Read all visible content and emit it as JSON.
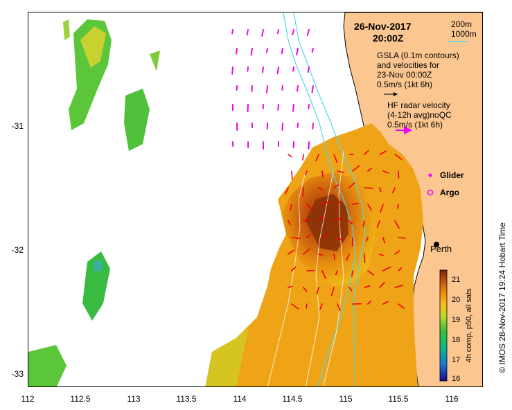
{
  "header": {
    "date": "26-Nov-2017",
    "time": "20:00Z"
  },
  "legend": {
    "depth_contours": [
      "200m",
      "1000m"
    ],
    "contour_color": "#4dd9e6",
    "gsla_lines": [
      "GSLA (0.1m contours)",
      "and velocities for",
      "23-Nov 00:00Z"
    ],
    "gsla_scale": "0.5m/s (1kt 6h)",
    "hf_lines": [
      "HF radar velocity",
      "(4-12h avg)noQC"
    ],
    "hf_scale": "0.5m/s (1kt 6h)",
    "glider": "Glider",
    "argo": "Argo"
  },
  "place": {
    "city": "Perth"
  },
  "axes": {
    "x_ticks": [
      "112",
      "112.5",
      "113",
      "113.5",
      "114",
      "114.5",
      "115",
      "115.5",
      "116"
    ],
    "y_ticks": [
      "-31",
      "-32",
      "-33"
    ]
  },
  "colorbar": {
    "title": "4h comp, p50, all sats",
    "ticks": [
      "16",
      "17",
      "18",
      "19",
      "20",
      "21"
    ],
    "range": [
      16,
      21.5
    ]
  },
  "credit": "© IMOS 28-Nov-2017 19:24 Hobart Time",
  "colors": {
    "land": "#fbc690",
    "glider": "#ff00ff",
    "argo": "#ff00ff",
    "hf_arrow": "#ee00ee",
    "gsla_arrow": "#ee0000",
    "contour": "#4dd9e6"
  }
}
